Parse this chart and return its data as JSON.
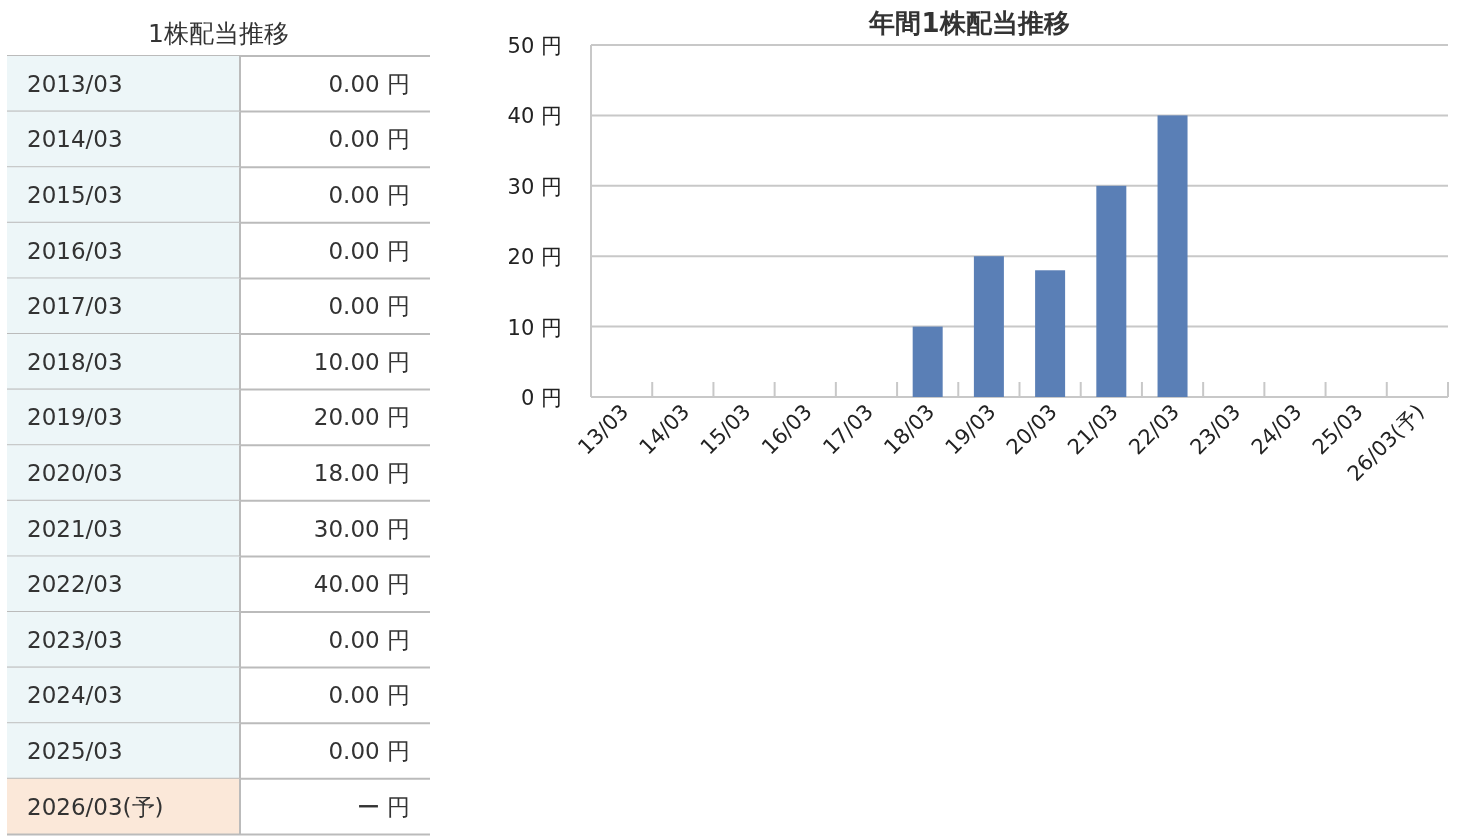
{
  "chart_data": [
    {
      "type": "other",
      "title": "1株配当推移",
      "categories": [
        "2013/03",
        "2014/03",
        "2015/03",
        "2016/03",
        "2017/03",
        "2018/03",
        "2019/03",
        "2020/03",
        "2021/03",
        "2022/03",
        "2023/03",
        "2024/03",
        "2025/03",
        "2026/03(予)"
      ],
      "values": [
        0,
        0,
        0,
        0,
        0,
        10,
        20,
        18,
        30,
        40,
        0,
        0,
        0,
        null
      ],
      "value_labels": [
        "0.00 円",
        "0.00 円",
        "0.00 円",
        "0.00 円",
        "0.00 円",
        "10.00 円",
        "20.00 円",
        "18.00 円",
        "30.00 円",
        "40.00 円",
        "0.00 円",
        "0.00 円",
        "0.00 円",
        "ー 円"
      ]
    },
    {
      "type": "bar",
      "title": "年間1株配当推移",
      "categories": [
        "13/03",
        "14/03",
        "15/03",
        "16/03",
        "17/03",
        "18/03",
        "19/03",
        "20/03",
        "21/03",
        "22/03",
        "23/03",
        "24/03",
        "25/03",
        "26/03(予)"
      ],
      "values": [
        0,
        0,
        0,
        0,
        0,
        10,
        20,
        18,
        30,
        40,
        0,
        0,
        0,
        null
      ],
      "color": "#5a7fb6",
      "ylim": [
        0,
        50
      ],
      "yticks": [
        {
          "value": 0,
          "label": "0 円"
        },
        {
          "value": 10,
          "label": "10 円"
        },
        {
          "value": 20,
          "label": "20 円"
        },
        {
          "value": 30,
          "label": "30 円"
        },
        {
          "value": 40,
          "label": "40 円"
        },
        {
          "value": 50,
          "label": "50 円"
        }
      ],
      "grid": "y"
    }
  ]
}
